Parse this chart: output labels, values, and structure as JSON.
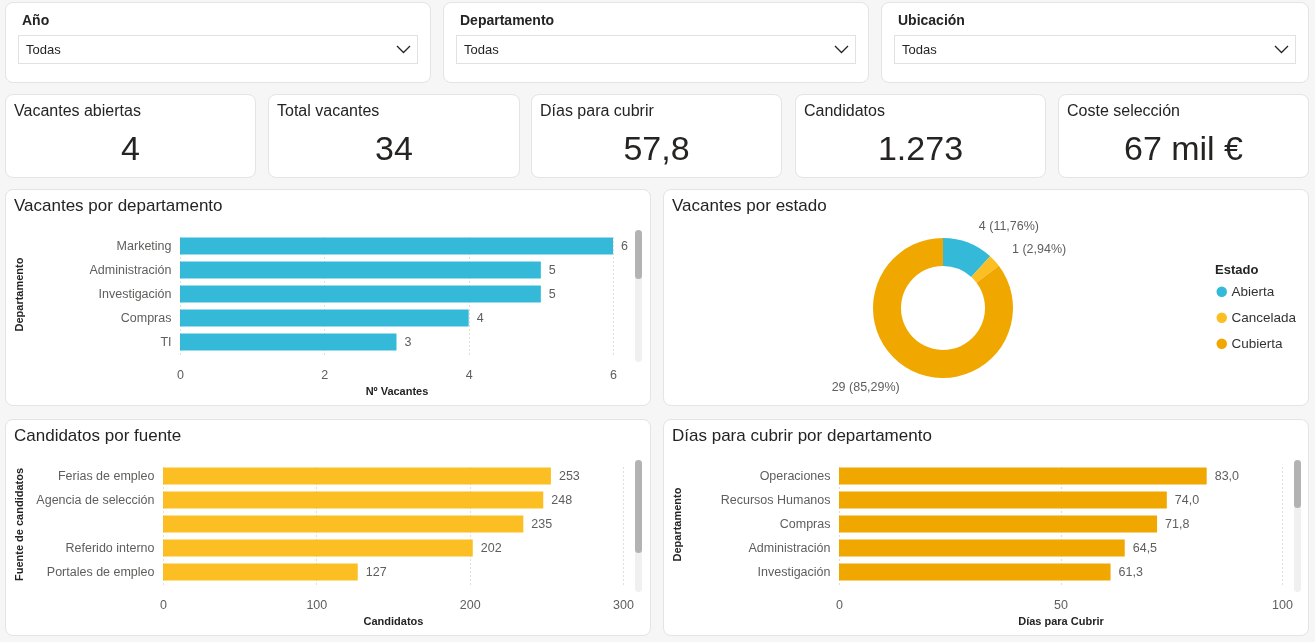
{
  "chart_data": [
    {
      "type": "other",
      "title": "Año",
      "annotations": [
        "Todas"
      ]
    },
    {
      "type": "other",
      "title": "Departamento",
      "annotations": [
        "Todas"
      ]
    },
    {
      "type": "other",
      "title": "Ubicación",
      "annotations": [
        "Todas"
      ]
    },
    {
      "type": "other",
      "title": "Vacantes abiertas",
      "annotations": [
        "4"
      ]
    },
    {
      "type": "other",
      "title": "Total vacantes",
      "annotations": [
        "34"
      ]
    },
    {
      "type": "other",
      "title": "Días para cubrir",
      "annotations": [
        "57,8"
      ]
    },
    {
      "type": "other",
      "title": "Candidatos",
      "annotations": [
        "1.273"
      ]
    },
    {
      "type": "other",
      "title": "Coste selección",
      "annotations": [
        "67 mil €"
      ]
    },
    {
      "type": "bar",
      "orientation": "horizontal",
      "title": "Vacantes por departamento",
      "xlabel": "Nº Vacantes",
      "ylabel": "Departamento",
      "categories": [
        "Marketing",
        "Administración",
        "Investigación",
        "Compras",
        "TI"
      ],
      "values": [
        6,
        5,
        5,
        4,
        3
      ],
      "color": "#35b9d9",
      "xlim": [
        0,
        6
      ],
      "xticks": [
        0,
        2,
        4,
        6
      ],
      "grid": "x",
      "data_labels": true
    },
    {
      "type": "donut",
      "title": "Vacantes por estado",
      "legend_title": "Estado",
      "categories": [
        "Abierta",
        "Cancelada",
        "Cubierta"
      ],
      "values": [
        4,
        1,
        29
      ],
      "colors": [
        "#35b9d9",
        "#fcbf23",
        "#f0a800"
      ],
      "value_labels": [
        "4 (11,76%)",
        "1 (2,94%)",
        "29 (85,29%)"
      ],
      "legend": "right"
    },
    {
      "type": "bar",
      "orientation": "horizontal",
      "title": "Candidatos por fuente",
      "xlabel": "Candidatos",
      "ylabel": "Fuente de candidatos",
      "categories": [
        "Ferias de empleo",
        "Agencia de selección",
        null,
        "Referido interno",
        "Portales de empleo"
      ],
      "values": [
        253,
        248,
        235,
        202,
        127
      ],
      "color": "#fcbf23",
      "xlim": [
        0,
        300
      ],
      "xticks": [
        0,
        100,
        200,
        300
      ],
      "grid": "x",
      "data_labels": true
    },
    {
      "type": "bar",
      "orientation": "horizontal",
      "title": "Días para cubrir por departamento",
      "xlabel": "Días para Cubrir",
      "ylabel": "Departamento",
      "categories": [
        "Operaciones",
        "Recursos Humanos",
        "Compras",
        "Administración",
        "Investigación"
      ],
      "values": [
        83.0,
        74.0,
        71.8,
        64.5,
        61.3
      ],
      "color": "#f0a800",
      "xlim": [
        0,
        100
      ],
      "xticks": [
        0,
        50,
        100
      ],
      "grid": "x",
      "value_labels": [
        "83,0",
        "74,0",
        "71,8",
        "64,5",
        "61,3"
      ]
    }
  ]
}
